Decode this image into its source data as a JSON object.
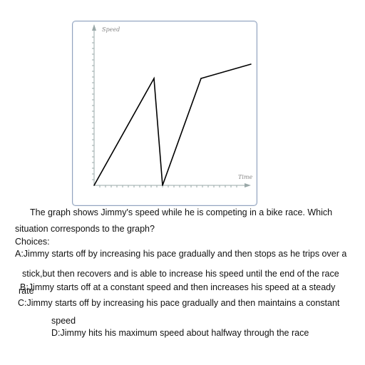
{
  "chart_data": {
    "type": "line",
    "xlabel": "Time",
    "ylabel": "Speed",
    "xlim": [
      0,
      12
    ],
    "ylim": [
      0,
      12
    ],
    "grid": false,
    "series": [
      {
        "x": [
          0,
          4.2,
          4.8,
          7.5,
          11
        ],
        "y": [
          0,
          7.5,
          0,
          7.5,
          8.5
        ]
      }
    ],
    "colors": {
      "axis": "#9aa8a8",
      "line": "#000000",
      "frame": "#8fa1bd"
    }
  },
  "question": {
    "line1": "The graph shows Jimmy's speed while he is competing in a bike race. Which",
    "line2": "situation corresponds to the graph?",
    "choices_label": "Choices:",
    "choice_a_1": "A:Jimmy starts off by increasing his pace gradually and then stops as he trips over a",
    "choice_a_2": "stick,but then recovers and is able to increase his speed until the end of the race",
    "choice_b_1": "B:Jimmy starts off at a constant speed and then increases his speed at a steady",
    "choice_b_2": "rate",
    "choice_c_1": "C:Jimmy starts off by increasing his pace gradually and then maintains a constant",
    "choice_c_2": "speed",
    "choice_d": "D:Jimmy hits his maximum speed about halfway through the race"
  }
}
